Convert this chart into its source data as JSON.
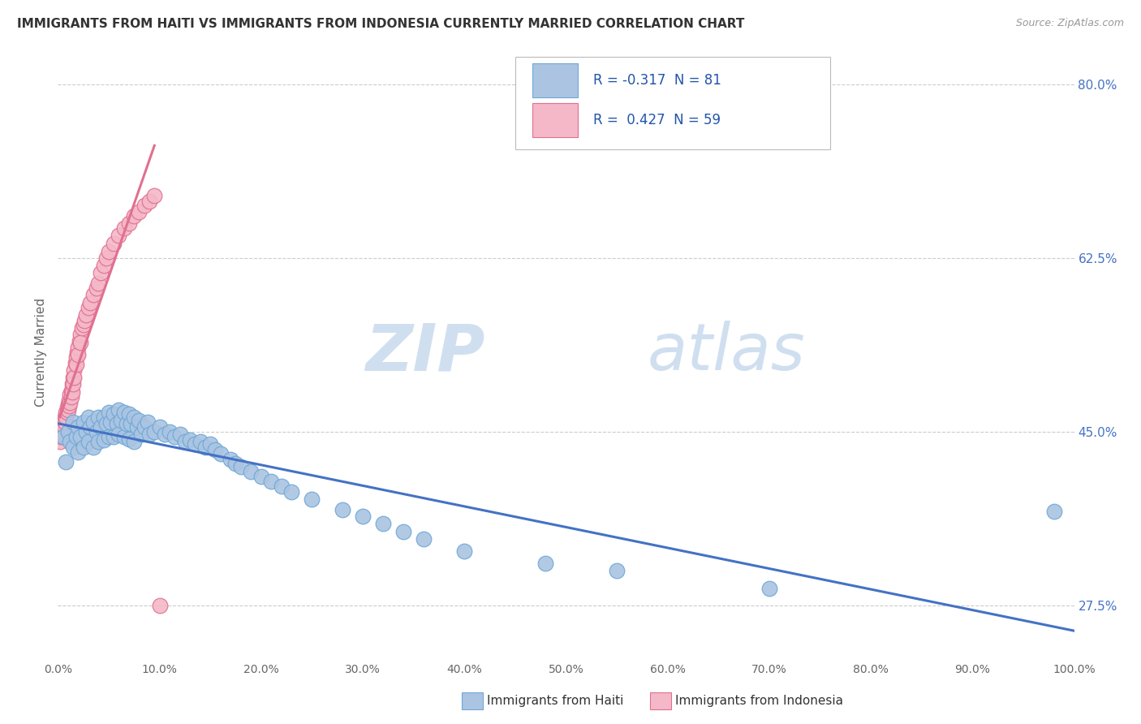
{
  "title": "IMMIGRANTS FROM HAITI VS IMMIGRANTS FROM INDONESIA CURRENTLY MARRIED CORRELATION CHART",
  "source": "Source: ZipAtlas.com",
  "ylabel": "Currently Married",
  "xlim": [
    0.0,
    1.0
  ],
  "ylim": [
    0.22,
    0.84
  ],
  "ytick_positions": [
    0.275,
    0.45,
    0.625,
    0.8
  ],
  "ytick_labels": [
    "27.5%",
    "45.0%",
    "62.5%",
    "80.0%"
  ],
  "xtick_positions": [
    0.0,
    0.1,
    0.2,
    0.3,
    0.4,
    0.5,
    0.6,
    0.7,
    0.8,
    0.9,
    1.0
  ],
  "xtick_labels": [
    "0.0%",
    "10.0%",
    "20.0%",
    "30.0%",
    "40.0%",
    "50.0%",
    "60.0%",
    "70.0%",
    "80.0%",
    "90.0%",
    "100.0%"
  ],
  "haiti_color": "#aac4e2",
  "haiti_edge": "#6fa8d6",
  "haiti_line_color": "#4472c4",
  "indonesia_color": "#f4b8c8",
  "indonesia_edge": "#e07090",
  "indonesia_line_color": "#e07090",
  "haiti_R": -0.317,
  "haiti_N": 81,
  "indonesia_R": 0.427,
  "indonesia_N": 59,
  "legend_label_haiti": "Immigrants from Haiti",
  "legend_label_indonesia": "Immigrants from Indonesia",
  "watermark_zip": "ZIP",
  "watermark_atlas": "atlas",
  "watermark_color": "#d0dff0",
  "grid_color": "#cccccc",
  "haiti_x": [
    0.005,
    0.008,
    0.01,
    0.012,
    0.015,
    0.015,
    0.018,
    0.02,
    0.02,
    0.022,
    0.025,
    0.025,
    0.028,
    0.03,
    0.03,
    0.032,
    0.035,
    0.035,
    0.038,
    0.04,
    0.04,
    0.042,
    0.045,
    0.045,
    0.048,
    0.05,
    0.05,
    0.052,
    0.055,
    0.055,
    0.058,
    0.06,
    0.06,
    0.062,
    0.065,
    0.065,
    0.068,
    0.07,
    0.07,
    0.072,
    0.075,
    0.075,
    0.078,
    0.08,
    0.082,
    0.085,
    0.088,
    0.09,
    0.095,
    0.1,
    0.105,
    0.11,
    0.115,
    0.12,
    0.125,
    0.13,
    0.135,
    0.14,
    0.145,
    0.15,
    0.155,
    0.16,
    0.17,
    0.175,
    0.18,
    0.19,
    0.2,
    0.21,
    0.22,
    0.23,
    0.25,
    0.28,
    0.3,
    0.32,
    0.34,
    0.36,
    0.4,
    0.48,
    0.55,
    0.7,
    0.98
  ],
  "haiti_y": [
    0.445,
    0.42,
    0.45,
    0.44,
    0.46,
    0.435,
    0.445,
    0.455,
    0.43,
    0.445,
    0.46,
    0.435,
    0.45,
    0.465,
    0.44,
    0.455,
    0.46,
    0.435,
    0.45,
    0.465,
    0.44,
    0.455,
    0.465,
    0.442,
    0.458,
    0.47,
    0.445,
    0.46,
    0.468,
    0.445,
    0.458,
    0.472,
    0.448,
    0.462,
    0.47,
    0.445,
    0.458,
    0.468,
    0.443,
    0.458,
    0.465,
    0.44,
    0.455,
    0.462,
    0.448,
    0.455,
    0.46,
    0.448,
    0.45,
    0.455,
    0.448,
    0.45,
    0.445,
    0.448,
    0.44,
    0.442,
    0.438,
    0.44,
    0.435,
    0.438,
    0.432,
    0.428,
    0.422,
    0.418,
    0.415,
    0.41,
    0.405,
    0.4,
    0.395,
    0.39,
    0.382,
    0.372,
    0.365,
    0.358,
    0.35,
    0.342,
    0.33,
    0.318,
    0.31,
    0.292,
    0.37
  ],
  "indonesia_x": [
    0.002,
    0.003,
    0.004,
    0.005,
    0.005,
    0.006,
    0.006,
    0.007,
    0.007,
    0.008,
    0.008,
    0.009,
    0.009,
    0.01,
    0.01,
    0.011,
    0.011,
    0.012,
    0.012,
    0.013,
    0.013,
    0.014,
    0.014,
    0.015,
    0.015,
    0.016,
    0.016,
    0.017,
    0.018,
    0.018,
    0.019,
    0.02,
    0.02,
    0.021,
    0.022,
    0.022,
    0.024,
    0.025,
    0.026,
    0.028,
    0.03,
    0.032,
    0.035,
    0.038,
    0.04,
    0.042,
    0.045,
    0.048,
    0.05,
    0.055,
    0.06,
    0.065,
    0.07,
    0.075,
    0.08,
    0.085,
    0.09,
    0.095,
    0.1
  ],
  "indonesia_y": [
    0.44,
    0.445,
    0.45,
    0.455,
    0.448,
    0.46,
    0.455,
    0.465,
    0.46,
    0.47,
    0.465,
    0.475,
    0.47,
    0.478,
    0.472,
    0.482,
    0.476,
    0.488,
    0.48,
    0.492,
    0.485,
    0.498,
    0.49,
    0.505,
    0.498,
    0.512,
    0.505,
    0.52,
    0.525,
    0.518,
    0.53,
    0.535,
    0.528,
    0.542,
    0.548,
    0.54,
    0.555,
    0.558,
    0.562,
    0.568,
    0.575,
    0.58,
    0.588,
    0.595,
    0.6,
    0.61,
    0.618,
    0.625,
    0.632,
    0.64,
    0.648,
    0.655,
    0.66,
    0.668,
    0.672,
    0.678,
    0.682,
    0.688,
    0.275
  ],
  "background_color": "#ffffff"
}
